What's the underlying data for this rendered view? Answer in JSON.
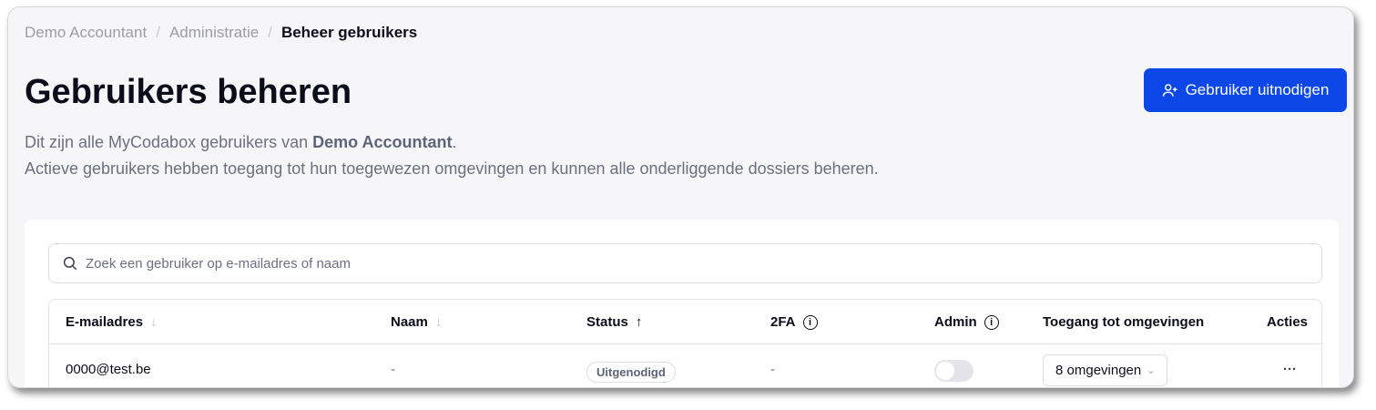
{
  "breadcrumb": [
    "Demo Accountant",
    "Administratie",
    "Beheer gebruikers"
  ],
  "title": "Gebruikers beheren",
  "invite_label": "Gebruiker uitnodigen",
  "desc": {
    "line1_pre": "Dit zijn alle MyCodabox gebruikers van ",
    "line1_bold": "Demo Accountant",
    "line1_post": ".",
    "line2": "Actieve gebruikers hebben toegang tot hun toegewezen omgevingen en kunnen alle onderliggende dossiers beheren."
  },
  "search": {
    "placeholder": "Zoek een gebruiker op e-mailadres of naam"
  },
  "columns": [
    "E-mailadres",
    "Naam",
    "Status",
    "2FA",
    "Admin",
    "Toegang tot omgevingen",
    "Acties"
  ],
  "rows": [
    {
      "email": "0000@test.be",
      "name": "-",
      "status": "Uitgenodigd",
      "twofa": "-",
      "admin": false,
      "access": "8 omgevingen"
    }
  ],
  "colors": {
    "accent": "#0d47e8"
  }
}
